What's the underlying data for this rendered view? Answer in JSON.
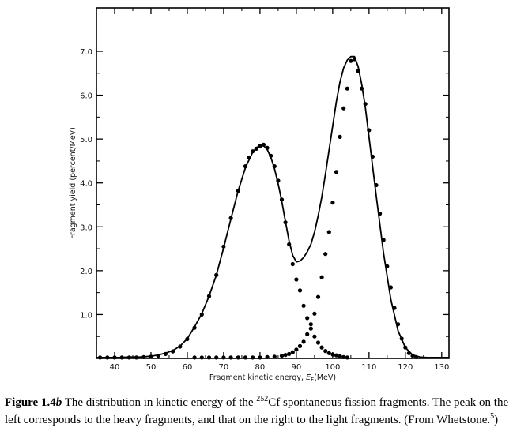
{
  "chart_data": {
    "type": "scatter",
    "xlabel_prefix": "Fragment kinetic energy, ",
    "xlabel_symbol": "E",
    "xlabel_sub": "F",
    "xlabel_unit": "(MeV)",
    "ylabel": "Fragment yield (percent/MeV)",
    "xlim": [
      35,
      132
    ],
    "ylim": [
      0,
      7.0
    ],
    "x_ticks": [
      40,
      50,
      60,
      70,
      80,
      90,
      100,
      110,
      120,
      130
    ],
    "x_tick_labels": [
      "40",
      "50",
      "60",
      "70",
      "80",
      "90",
      "100",
      "110",
      "120",
      "130"
    ],
    "y_ticks": [
      1.0,
      2.0,
      3.0,
      4.0,
      5.0,
      6.0,
      7.0
    ],
    "y_tick_labels": [
      "1.0",
      "2.0",
      "3.0",
      "4.0",
      "5.0",
      "6.0",
      "7.0"
    ],
    "series": [
      {
        "style": "solid-line",
        "x": [
          35,
          38,
          41,
          44,
          47,
          50,
          52,
          54,
          56,
          58,
          60,
          62,
          64,
          66,
          68,
          70,
          72,
          74,
          76,
          78,
          79,
          80,
          81,
          82,
          83,
          84,
          85,
          86,
          87,
          88,
          89,
          90,
          91,
          92,
          93,
          94,
          95,
          96,
          97,
          98,
          99,
          100,
          101,
          102,
          103,
          104,
          105,
          106,
          107,
          108,
          109,
          110,
          112,
          114,
          116,
          118,
          120,
          122,
          124,
          126,
          128,
          130,
          132
        ],
        "y": [
          0.02,
          0.02,
          0.02,
          0.03,
          0.03,
          0.05,
          0.08,
          0.12,
          0.18,
          0.28,
          0.45,
          0.72,
          1.02,
          1.42,
          1.9,
          2.52,
          3.18,
          3.82,
          4.35,
          4.7,
          4.8,
          4.86,
          4.85,
          4.76,
          4.58,
          4.32,
          3.98,
          3.58,
          3.12,
          2.68,
          2.35,
          2.2,
          2.22,
          2.3,
          2.43,
          2.6,
          2.88,
          3.25,
          3.68,
          4.2,
          4.75,
          5.3,
          5.85,
          6.3,
          6.62,
          6.8,
          6.88,
          6.88,
          6.65,
          6.25,
          5.72,
          5.05,
          3.7,
          2.4,
          1.35,
          0.63,
          0.25,
          0.08,
          0.03,
          0.02,
          0.02,
          0.02,
          0.02
        ]
      },
      {
        "style": "dots",
        "x": [
          36,
          38,
          40,
          42,
          44,
          46,
          48,
          50,
          52,
          54,
          56,
          58,
          60,
          62,
          64,
          66,
          68,
          70,
          72,
          74,
          76,
          77,
          78,
          79,
          80,
          81,
          82,
          83,
          84,
          85,
          86,
          87,
          88,
          89,
          90,
          91,
          92,
          93,
          94,
          95,
          96,
          97,
          98,
          99,
          100,
          101,
          102,
          103,
          104
        ],
        "y": [
          0.02,
          0.02,
          0.02,
          0.02,
          0.02,
          0.02,
          0.03,
          0.04,
          0.06,
          0.1,
          0.16,
          0.27,
          0.44,
          0.7,
          1.0,
          1.42,
          1.9,
          2.55,
          3.2,
          3.82,
          4.38,
          4.58,
          4.72,
          4.78,
          4.84,
          4.87,
          4.8,
          4.62,
          4.38,
          4.05,
          3.62,
          3.1,
          2.6,
          2.15,
          1.8,
          1.55,
          1.2,
          0.92,
          0.68,
          0.5,
          0.36,
          0.25,
          0.17,
          0.12,
          0.09,
          0.07,
          0.05,
          0.03,
          0.02
        ]
      },
      {
        "style": "dots",
        "x": [
          62,
          64,
          66,
          68,
          70,
          72,
          74,
          76,
          78,
          80,
          82,
          84,
          86,
          87,
          88,
          89,
          90,
          91,
          92,
          93,
          94,
          95,
          96,
          97,
          98,
          99,
          100,
          101,
          102,
          103,
          104,
          105,
          106,
          107,
          108,
          109,
          110,
          111,
          112,
          113,
          114,
          115,
          116,
          117,
          118,
          119,
          120,
          121,
          122,
          123
        ],
        "y": [
          0.02,
          0.02,
          0.02,
          0.02,
          0.02,
          0.02,
          0.02,
          0.02,
          0.02,
          0.02,
          0.03,
          0.04,
          0.06,
          0.08,
          0.1,
          0.14,
          0.2,
          0.28,
          0.38,
          0.55,
          0.78,
          1.02,
          1.4,
          1.85,
          2.38,
          2.88,
          3.55,
          4.25,
          5.05,
          5.7,
          6.15,
          6.78,
          6.82,
          6.55,
          6.15,
          5.8,
          5.2,
          4.6,
          3.95,
          3.3,
          2.7,
          2.1,
          1.62,
          1.15,
          0.78,
          0.45,
          0.25,
          0.12,
          0.06,
          0.03
        ]
      }
    ]
  },
  "caption": {
    "figure_label": "Figure 1.4",
    "figure_label_sub": "b",
    "text_part1": " The distribution in kinetic energy of the ",
    "isotope_mass": "252",
    "text_part2": "Cf spontaneous fission fragments. The peak on the left corresponds to the heavy fragments, and that on the right to the light fragments. (From Whetstone.",
    "ref_number": "5",
    "text_part3": ")"
  }
}
